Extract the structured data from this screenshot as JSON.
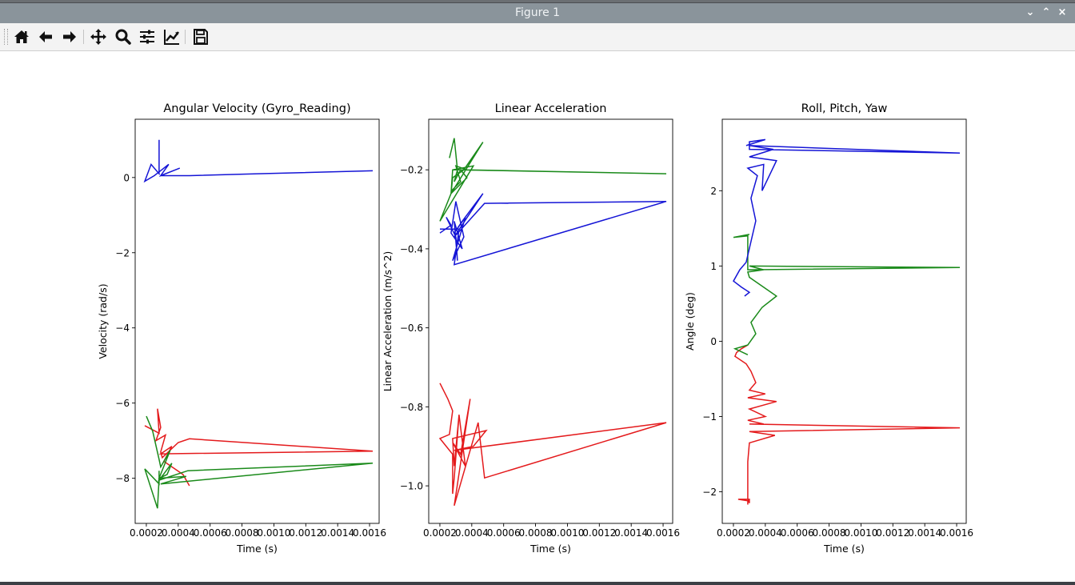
{
  "window": {
    "title": "Figure 1",
    "controls": {
      "minimize": "⌄",
      "maximize": "⌃",
      "close": "×"
    }
  },
  "toolbar": {
    "items": [
      {
        "name": "home-icon",
        "tooltip": "Home"
      },
      {
        "name": "back-icon",
        "tooltip": "Back"
      },
      {
        "name": "forward-icon",
        "tooltip": "Forward"
      },
      {
        "name": "pan-icon",
        "tooltip": "Pan"
      },
      {
        "name": "zoom-icon",
        "tooltip": "Zoom"
      },
      {
        "name": "subplots-icon",
        "tooltip": "Subplots"
      },
      {
        "name": "edit-axes-icon",
        "tooltip": "Customize"
      },
      {
        "name": "save-icon",
        "tooltip": "Save"
      }
    ]
  },
  "colors": {
    "red": "#e41a1c",
    "green": "#1a8a1a",
    "blue": "#1414d6",
    "frame": "#000000"
  },
  "chart_data": [
    {
      "type": "line",
      "title": "Angular Velocity (Gyro_Reading)",
      "xlabel": "Time (s)",
      "ylabel": "Velocity (rad/s)",
      "xlim": [
        0.00013,
        0.00166
      ],
      "ylim": [
        -9.2,
        1.55
      ],
      "xticks": [
        0.0002,
        0.0004,
        0.0006,
        0.0008,
        0.001,
        0.0012,
        0.0014,
        0.0016
      ],
      "xtick_labels": [
        "0.0002",
        "0.0004",
        "0.0006",
        "0.0008",
        "0.0010",
        "0.0012",
        "0.0014",
        "0.0016"
      ],
      "yticks": [
        0,
        -2,
        -4,
        -6,
        -8
      ],
      "ytick_labels": [
        "0",
        "−2",
        "−4",
        "−6",
        "−8"
      ],
      "series": [
        {
          "color": "red",
          "x": [
            0.00019,
            0.00028,
            0.00027,
            0.00029,
            0.00026,
            0.00032,
            0.00029,
            0.0003,
            0.0004,
            0.00047,
            0.00162,
            0.00029,
            0.00036,
            0.00031,
            0.00043,
            0.00047
          ],
          "y": [
            -6.6,
            -6.8,
            -6.15,
            -6.65,
            -7.0,
            -6.85,
            -7.3,
            -7.45,
            -7.05,
            -6.95,
            -7.28,
            -7.35,
            -7.15,
            -7.55,
            -7.9,
            -8.2
          ]
        },
        {
          "color": "green",
          "x": [
            0.0002,
            0.00024,
            0.00028,
            0.00029,
            0.00035,
            0.00028,
            0.00033,
            0.00036,
            0.00028,
            0.00046,
            0.00162,
            0.00029,
            0.00045,
            0.00028,
            0.00027,
            0.00019,
            0.00028,
            0.00028
          ],
          "y": [
            -6.35,
            -6.75,
            -7.5,
            -7.7,
            -7.25,
            -8.0,
            -7.9,
            -7.6,
            -8.05,
            -7.8,
            -7.6,
            -8.15,
            -7.95,
            -8.0,
            -8.8,
            -7.75,
            -8.15,
            -7.8
          ]
        },
        {
          "color": "blue",
          "x": [
            0.00028,
            0.00028,
            0.00028,
            0.00023,
            0.00019,
            0.00025,
            0.00028,
            0.00034,
            0.00029,
            0.00041,
            0.00029,
            0.00047,
            0.0009,
            0.00162
          ],
          "y": [
            1.0,
            0.45,
            0.1,
            0.35,
            -0.1,
            0.05,
            0.15,
            0.35,
            0.05,
            0.25,
            0.05,
            0.05,
            0.1,
            0.18
          ]
        }
      ]
    },
    {
      "type": "line",
      "title": "Linear Acceleration",
      "xlabel": "Time (s)",
      "ylabel": "Linear Acceleration (m/s^2)",
      "xlim": [
        0.00013,
        0.00166
      ],
      "ylim": [
        -1.095,
        -0.072
      ],
      "xticks": [
        0.0002,
        0.0004,
        0.0006,
        0.0008,
        0.001,
        0.0012,
        0.0014,
        0.0016
      ],
      "xtick_labels": [
        "0.0002",
        "0.0004",
        "0.0006",
        "0.0008",
        "0.0010",
        "0.0012",
        "0.0014",
        "0.0016"
      ],
      "yticks": [
        -0.2,
        -0.4,
        -0.6,
        -0.8,
        -1.0
      ],
      "ytick_labels": [
        "−0.2",
        "−0.4",
        "−0.6",
        "−0.8",
        "−1.0"
      ],
      "series": [
        {
          "color": "red",
          "x": [
            0.0002,
            0.00025,
            0.00028,
            0.00026,
            0.0002,
            0.00028,
            0.00028,
            0.00029,
            0.00032,
            0.00036,
            0.00028,
            0.00033,
            0.00039,
            0.00029,
            0.00044,
            0.00048,
            0.00162,
            0.00029,
            0.00041,
            0.00049,
            0.00028,
            0.00029,
            0.00032
          ],
          "y": [
            -0.74,
            -0.78,
            -0.81,
            -0.87,
            -0.88,
            -0.92,
            -1.02,
            -0.98,
            -0.82,
            -0.95,
            -0.89,
            -0.92,
            -0.78,
            -1.05,
            -0.84,
            -0.98,
            -0.84,
            -0.91,
            -0.9,
            -0.86,
            -0.88,
            -0.95,
            -0.82
          ]
        },
        {
          "color": "green",
          "x": [
            0.00026,
            0.00029,
            0.00031,
            0.00029,
            0.00033,
            0.00037,
            0.00027,
            0.00047,
            0.00035,
            0.00028,
            0.00027,
            0.00028,
            0.00041,
            0.0002,
            0.00028,
            0.00033,
            0.0003,
            0.00037,
            0.00162,
            0.00032,
            0.00028
          ],
          "y": [
            -0.17,
            -0.12,
            -0.2,
            -0.23,
            -0.2,
            -0.22,
            -0.26,
            -0.13,
            -0.2,
            -0.22,
            -0.26,
            -0.2,
            -0.19,
            -0.33,
            -0.25,
            -0.23,
            -0.19,
            -0.2,
            -0.21,
            -0.2,
            -0.2
          ]
        },
        {
          "color": "blue",
          "x": [
            0.0002,
            0.00027,
            0.00024,
            0.0003,
            0.00031,
            0.00029,
            0.00034,
            0.00027,
            0.0003,
            0.00035,
            0.00028,
            0.00036,
            0.00029,
            0.00034,
            0.00047,
            0.00029,
            0.00048,
            0.00162,
            0.00029,
            0.00032,
            0.0002
          ],
          "y": [
            -0.36,
            -0.34,
            -0.32,
            -0.37,
            -0.43,
            -0.33,
            -0.4,
            -0.36,
            -0.28,
            -0.37,
            -0.43,
            -0.32,
            -0.36,
            -0.33,
            -0.26,
            -0.37,
            -0.285,
            -0.28,
            -0.44,
            -0.35,
            -0.35
          ]
        }
      ]
    },
    {
      "type": "line",
      "title": "Roll, Pitch, Yaw",
      "xlabel": "Time (s)",
      "ylabel": "Angle (deg)",
      "xlim": [
        0.00013,
        0.00166
      ],
      "ylim": [
        -2.42,
        2.95
      ],
      "xticks": [
        0.0002,
        0.0004,
        0.0006,
        0.0008,
        0.001,
        0.0012,
        0.0014,
        0.0016
      ],
      "xtick_labels": [
        "0.0002",
        "0.0004",
        "0.0006",
        "0.0008",
        "0.0010",
        "0.0012",
        "0.0014",
        "0.0016"
      ],
      "yticks": [
        2,
        1,
        0,
        -1,
        -2
      ],
      "ytick_labels": [
        "2",
        "1",
        "0",
        "−1",
        "−2"
      ],
      "series": [
        {
          "color": "red",
          "x": [
            0.00029,
            0.00025,
            0.00022,
            0.00021,
            0.00028,
            0.00031,
            0.00034,
            0.0003,
            0.0004,
            0.00029,
            0.00047,
            0.0003,
            0.0004,
            0.00029,
            0.00039,
            0.0003,
            0.00162,
            0.0003,
            0.00046,
            0.0003,
            0.00029,
            0.00029,
            0.00029,
            0.00029,
            0.0003,
            0.0003,
            0.00023,
            0.00029,
            0.00029
          ],
          "y": [
            -0.05,
            -0.1,
            -0.15,
            -0.2,
            -0.3,
            -0.4,
            -0.55,
            -0.65,
            -0.7,
            -0.75,
            -0.8,
            -0.9,
            -1.0,
            -1.05,
            -1.1,
            -1.1,
            -1.15,
            -1.2,
            -1.25,
            -1.35,
            -1.6,
            -1.8,
            -2.0,
            -2.1,
            -2.15,
            -2.1,
            -2.1,
            -2.12,
            -2.17
          ]
        },
        {
          "color": "green",
          "x": [
            0.00029,
            0.00021,
            0.00029,
            0.00034,
            0.00031,
            0.00038,
            0.00047,
            0.0003,
            0.00029,
            0.00039,
            0.0003,
            0.00162,
            0.00029,
            0.00029,
            0.00029,
            0.0002,
            0.0003
          ],
          "y": [
            -0.18,
            -0.1,
            -0.05,
            0.1,
            0.25,
            0.45,
            0.6,
            0.85,
            0.92,
            0.95,
            1.0,
            0.98,
            0.95,
            1.2,
            1.4,
            1.38,
            1.42
          ]
        },
        {
          "color": "blue",
          "x": [
            0.00027,
            0.0003,
            0.00025,
            0.0002,
            0.00024,
            0.00028,
            0.00034,
            0.00031,
            0.00035,
            0.00029,
            0.00039,
            0.00038,
            0.00047,
            0.0003,
            0.00045,
            0.0003,
            0.00162,
            0.0003,
            0.0003,
            0.0004,
            0.00028
          ],
          "y": [
            0.6,
            0.65,
            0.72,
            0.8,
            0.95,
            1.05,
            1.6,
            1.9,
            2.2,
            2.3,
            2.35,
            2.0,
            2.4,
            2.45,
            2.55,
            2.6,
            2.5,
            2.55,
            2.65,
            2.68,
            2.6
          ]
        }
      ]
    }
  ]
}
